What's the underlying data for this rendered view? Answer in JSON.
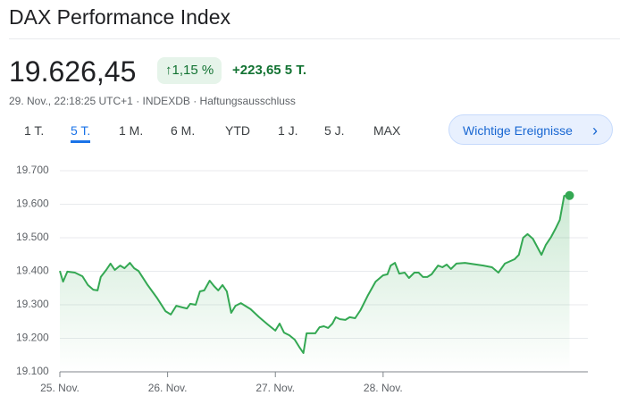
{
  "header": {
    "title": "DAX Performance Index",
    "price": "19.626,45",
    "change_percent": "1,15 %",
    "change_abs": "+223,65 5 T.",
    "meta": "29. Nov., 22:18:25 UTC+1 · INDEXDB · Haftungsausschluss"
  },
  "tabs": [
    "1 T.",
    "5 T.",
    "1 M.",
    "6 M.",
    "YTD",
    "1 J.",
    "5 J.",
    "MAX"
  ],
  "button": "Wichtige Ereignisse",
  "chart_data": {
    "type": "line",
    "color": "#34a853",
    "grid": true,
    "xlim": [
      0,
      4.9
    ],
    "xticks": [
      {
        "value": 0,
        "label": "25. Nov."
      },
      {
        "value": 1,
        "label": "26. Nov."
      },
      {
        "value": 2,
        "label": "27. Nov."
      },
      {
        "value": 3,
        "label": "28. Nov."
      }
    ],
    "ylim": [
      19100,
      19700
    ],
    "yticks": [
      {
        "value": 19700,
        "label": "19.700"
      },
      {
        "value": 19600,
        "label": "19.600"
      },
      {
        "value": 19500,
        "label": "19.500"
      },
      {
        "value": 19400,
        "label": "19.400"
      },
      {
        "value": 19300,
        "label": "19.300"
      },
      {
        "value": 19200,
        "label": "19.200"
      },
      {
        "value": 19100,
        "label": "19.100"
      }
    ],
    "x": [
      0,
      0.03,
      0.07,
      0.14,
      0.21,
      0.26,
      0.31,
      0.35,
      0.38,
      0.43,
      0.47,
      0.51,
      0.56,
      0.6,
      0.65,
      0.69,
      0.73,
      0.81,
      0.9,
      0.98,
      1.03,
      1.08,
      1.14,
      1.18,
      1.21,
      1.26,
      1.3,
      1.34,
      1.39,
      1.43,
      1.47,
      1.51,
      1.55,
      1.59,
      1.63,
      1.68,
      1.77,
      1.85,
      1.93,
      2.0,
      2.04,
      2.08,
      2.13,
      2.18,
      2.22,
      2.26,
      2.29,
      2.37,
      2.41,
      2.45,
      2.49,
      2.53,
      2.56,
      2.6,
      2.65,
      2.69,
      2.74,
      2.79,
      2.86,
      2.93,
      3.0,
      3.04,
      3.07,
      3.11,
      3.15,
      3.2,
      3.24,
      3.29,
      3.33,
      3.37,
      3.41,
      3.45,
      3.51,
      3.55,
      3.59,
      3.63,
      3.68,
      3.76,
      3.93,
      4.01,
      4.07,
      4.13,
      4.22,
      4.26,
      4.3,
      4.34,
      4.39,
      4.43,
      4.47,
      4.51,
      4.56,
      4.6,
      4.64,
      4.68,
      4.73
    ],
    "values": [
      19401,
      19369,
      19399,
      19396,
      19385,
      19359,
      19345,
      19343,
      19383,
      19404,
      19423,
      19404,
      19417,
      19409,
      19425,
      19409,
      19401,
      19361,
      19321,
      19281,
      19271,
      19297,
      19292,
      19289,
      19303,
      19300,
      19340,
      19343,
      19372,
      19356,
      19343,
      19359,
      19340,
      19276,
      19297,
      19305,
      19287,
      19263,
      19241,
      19223,
      19244,
      19217,
      19209,
      19196,
      19175,
      19156,
      19215,
      19215,
      19233,
      19236,
      19231,
      19244,
      19263,
      19257,
      19255,
      19263,
      19260,
      19284,
      19329,
      19369,
      19388,
      19391,
      19417,
      19425,
      19393,
      19396,
      19380,
      19396,
      19396,
      19383,
      19383,
      19391,
      19417,
      19412,
      19420,
      19407,
      19423,
      19425,
      19417,
      19412,
      19396,
      19423,
      19436,
      19449,
      19500,
      19511,
      19497,
      19473,
      19449,
      19479,
      19503,
      19527,
      19553,
      19625,
      19626
    ]
  }
}
